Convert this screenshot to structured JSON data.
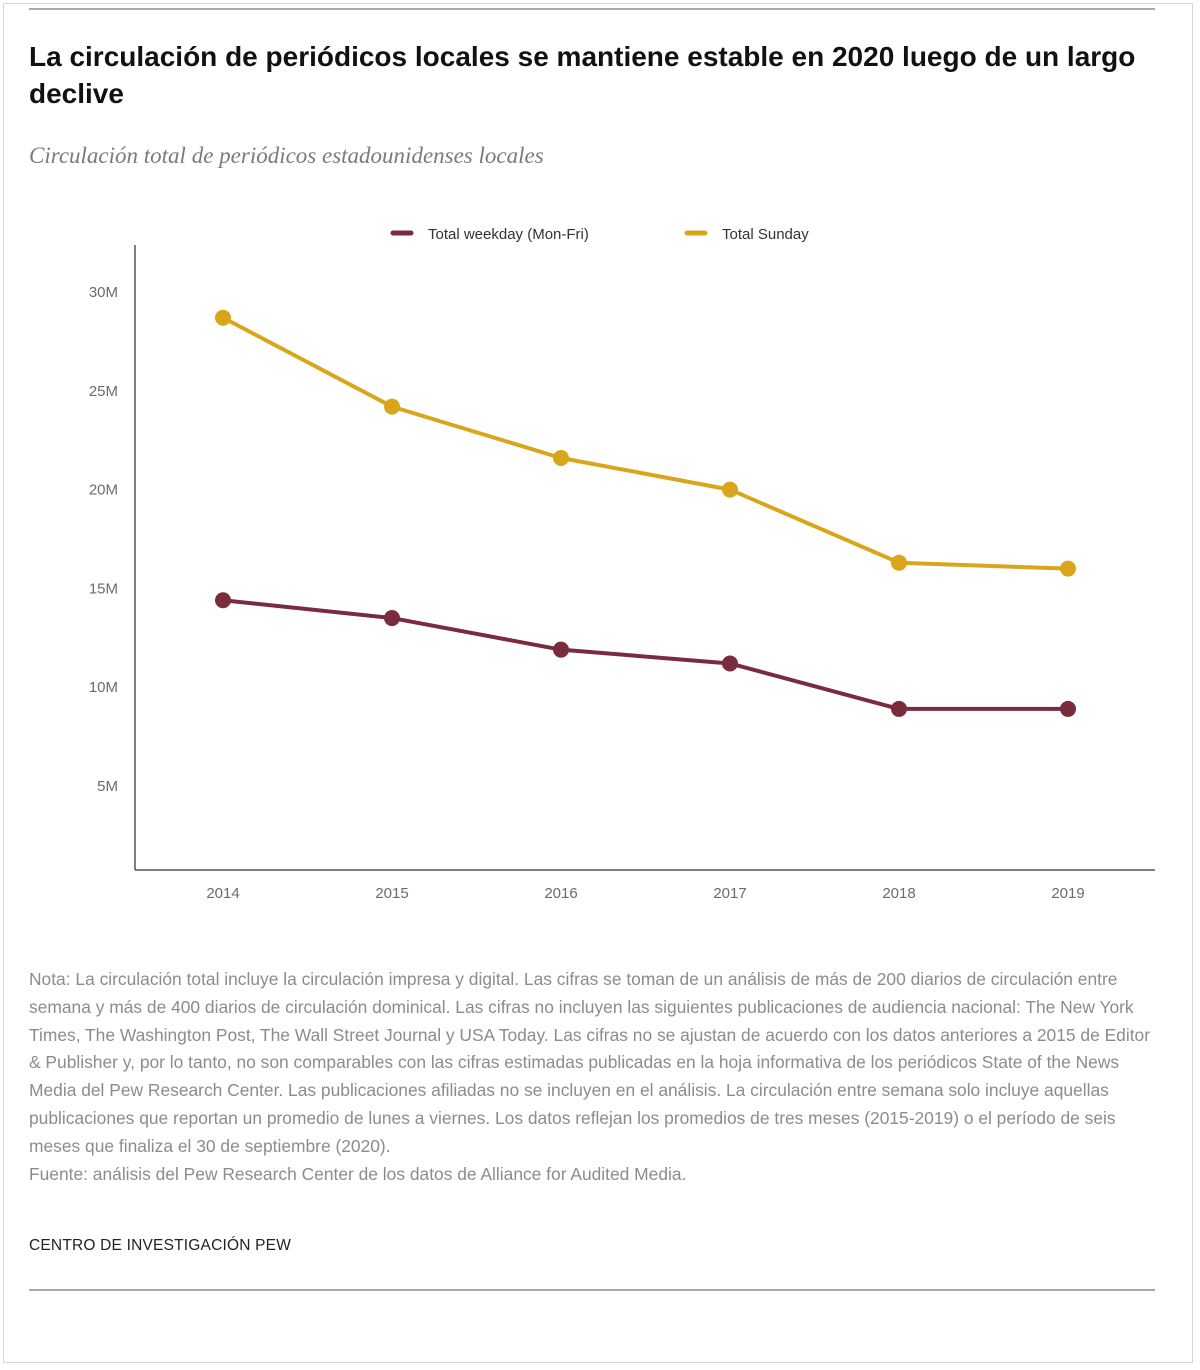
{
  "header": {
    "title": "La circulación de periódicos locales se mantiene estable en 2020 luego de un largo declive",
    "subtitle": "Circulación total de periódicos estadounidenses locales"
  },
  "chart_data": {
    "type": "line",
    "categories": [
      "2014",
      "2015",
      "2016",
      "2017",
      "2018",
      "2019"
    ],
    "series": [
      {
        "name": "Total weekday (Mon-Fri)",
        "color": "#7a2b3d",
        "values": [
          14.4,
          13.5,
          11.9,
          11.2,
          8.9,
          8.9
        ]
      },
      {
        "name": "Total Sunday",
        "color": "#d9a51a",
        "values": [
          28.7,
          24.2,
          21.6,
          20.0,
          16.3,
          16.0
        ]
      }
    ],
    "y_ticks": [
      {
        "value": 5,
        "label": "5M"
      },
      {
        "value": 10,
        "label": "10M"
      },
      {
        "value": 15,
        "label": "15M"
      },
      {
        "value": 20,
        "label": "20M"
      },
      {
        "value": 25,
        "label": "25M"
      },
      {
        "value": 30,
        "label": "30M"
      }
    ],
    "ylim": [
      0,
      32
    ],
    "grid": false,
    "legend_position": "top-center"
  },
  "notes": {
    "nota": "Nota: La circulación total incluye la circulación impresa y digital. Las cifras se toman de un análisis de más de 200 diarios de circulación entre semana y más de 400 diarios de circulación dominical. Las cifras no incluyen las siguientes publicaciones de audiencia nacional: The New York Times, The Washington Post, The Wall Street Journal y USA Today. Las cifras no se ajustan de acuerdo con los datos anteriores a 2015 de Editor & Publisher y, por lo tanto, no son comparables con las cifras estimadas publicadas en la hoja informativa de los periódicos State of the News Media del Pew Research Center. Las publicaciones afiliadas no se incluyen en el análisis. La circulación entre semana solo incluye aquellas publicaciones que reportan un promedio de lunes a viernes. Los datos reflejan los promedios de tres meses (2015-2019) o el período de seis meses que finaliza el 30 de septiembre (2020).",
    "fuente": "Fuente: análisis del Pew Research Center de los datos de Alliance for Audited Media."
  },
  "footer": {
    "credit": "CENTRO DE INVESTIGACIÓN PEW"
  }
}
